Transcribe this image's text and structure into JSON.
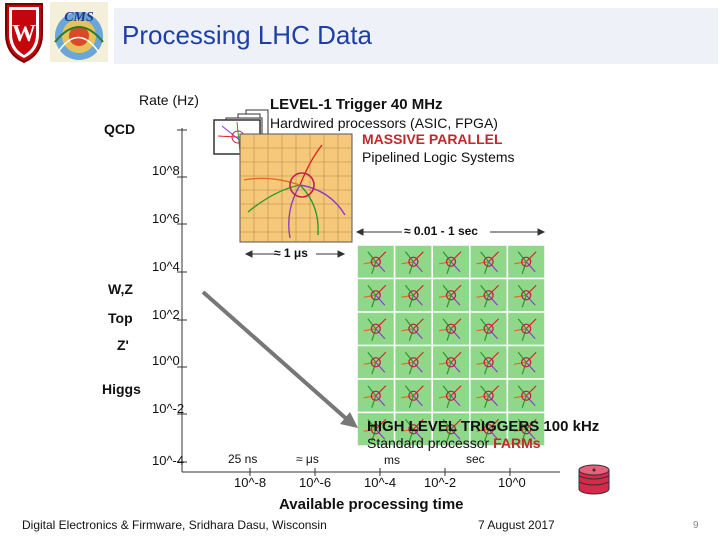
{
  "slide": {
    "title": "Processing LHC Data",
    "footer_left": "Digital Electronics & Firmware, Sridhara Dasu, Wisconsin",
    "footer_date": "7 August 2017",
    "page_number": "9"
  },
  "logos": {
    "left": "wisconsin-crest-logo",
    "right": "cms-logo"
  },
  "diagram": {
    "y_axis_title": "Rate (Hz)",
    "y_ticks": [
      "10^8",
      "10^6",
      "10^4",
      "10^2",
      "10^0",
      "10^-2",
      "10^-4"
    ],
    "process_labels": [
      "QCD",
      "W,Z",
      "Top",
      "Z'",
      "Higgs"
    ],
    "x_axis_title": "Available processing time",
    "x_ticks": [
      "10^-8",
      "10^-6",
      "10^-4",
      "10^-2",
      "10^0"
    ],
    "time_labels": [
      "25 ns",
      "≈ μs",
      "ms",
      "sec"
    ],
    "level1": {
      "title": "LEVEL-1 Trigger 40 MHz",
      "line1": "Hardwired processors  (ASIC, FPGA)",
      "line2": "MASSIVE PARALLEL",
      "line3": "Pipelined Logic Systems",
      "span": "≈ 1 μs"
    },
    "hlt": {
      "span": "≈ 0.01 - 1 sec",
      "title": "HIGH LEVEL TRIGGERS 100 kHz",
      "line_prefix": "Standard processor ",
      "line_highlight": "FARMs"
    },
    "colors": {
      "orange_grid": "#f6c97a",
      "green_grid": "#8fd88a",
      "red_text": "#c1272d",
      "title_blue": "#1e40a6",
      "disk_red": "#d8294a"
    }
  }
}
